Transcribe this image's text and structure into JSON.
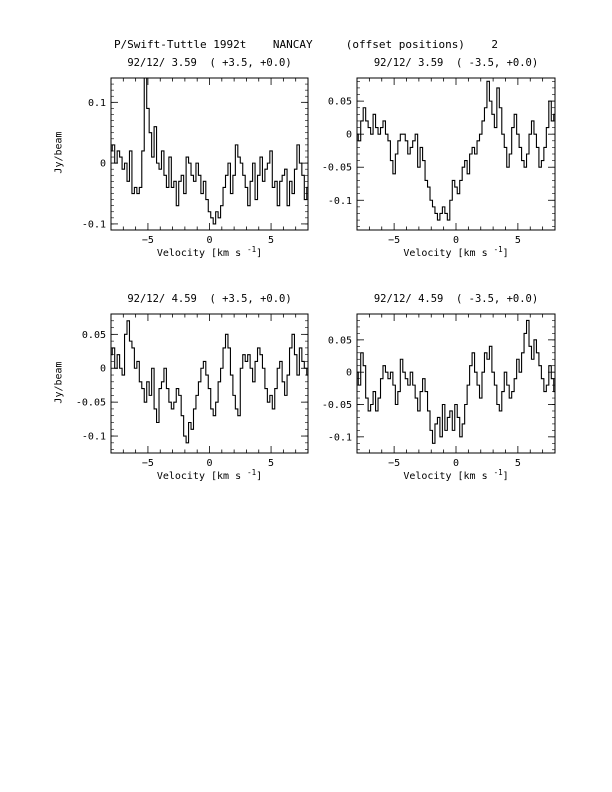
{
  "page": {
    "title": "P/Swift-Tuttle 1992t    NANCAY     (offset positions)    2"
  },
  "chart_data": [
    {
      "type": "line",
      "title": "92/12/ 3.59  ( +3.5, +0.0)",
      "xlabel": "Velocity [km s",
      "xlabel_sup": "-1",
      "xlabel_close": "]",
      "ylabel": "Jy/beam",
      "xlim": [
        -8,
        8
      ],
      "ylim": [
        -0.11,
        0.14
      ],
      "xticks": [
        -5,
        0,
        5
      ],
      "yticks": [
        -0.1,
        0,
        0.1
      ],
      "yticklabels": [
        "-0.1",
        "0",
        "0.1"
      ],
      "x_start": -8.0,
      "x_step": 0.2,
      "values": [
        0.02,
        0.03,
        0.0,
        0.02,
        0.01,
        -0.01,
        0.0,
        -0.03,
        0.02,
        -0.05,
        -0.04,
        -0.05,
        -0.04,
        0.02,
        0.14,
        0.09,
        0.05,
        0.01,
        0.06,
        0.0,
        -0.01,
        0.02,
        -0.02,
        -0.04,
        0.01,
        -0.04,
        -0.03,
        -0.07,
        -0.03,
        -0.02,
        -0.05,
        0.01,
        0.0,
        -0.02,
        -0.03,
        0.0,
        -0.02,
        -0.05,
        -0.03,
        -0.06,
        -0.08,
        -0.09,
        -0.1,
        -0.08,
        -0.09,
        -0.07,
        -0.04,
        -0.02,
        0.0,
        -0.05,
        -0.02,
        0.03,
        0.01,
        0.0,
        -0.02,
        -0.04,
        -0.07,
        -0.03,
        0.0,
        -0.06,
        -0.02,
        0.01,
        -0.03,
        -0.01,
        0.0,
        0.02,
        -0.04,
        -0.03,
        -0.07,
        -0.03,
        -0.02,
        -0.01,
        -0.07,
        -0.03,
        -0.05,
        -0.01,
        0.03,
        0.0,
        -0.02,
        -0.06,
        -0.04
      ]
    },
    {
      "type": "line",
      "title": "92/12/ 3.59  ( -3.5, +0.0)",
      "xlabel": "Velocity [km s",
      "xlabel_sup": "-1",
      "xlabel_close": "]",
      "ylabel": "",
      "xlim": [
        -8,
        8
      ],
      "ylim": [
        -0.145,
        0.085
      ],
      "xticks": [
        -5,
        0,
        5
      ],
      "yticks": [
        -0.1,
        -0.05,
        0,
        0.05
      ],
      "yticklabels": [
        "-0.1",
        "-0.05",
        "0",
        "0.05"
      ],
      "x_start": -8.0,
      "x_step": 0.2,
      "values": [
        0.0,
        -0.01,
        0.02,
        0.04,
        0.02,
        0.01,
        0.0,
        0.03,
        0.01,
        0.0,
        0.01,
        0.02,
        0.0,
        -0.01,
        -0.04,
        -0.06,
        -0.03,
        -0.01,
        0.0,
        0.0,
        -0.01,
        -0.03,
        -0.02,
        -0.01,
        0.0,
        -0.05,
        -0.02,
        -0.04,
        -0.07,
        -0.08,
        -0.1,
        -0.11,
        -0.12,
        -0.13,
        -0.12,
        -0.11,
        -0.12,
        -0.13,
        -0.1,
        -0.07,
        -0.08,
        -0.09,
        -0.07,
        -0.05,
        -0.04,
        -0.06,
        -0.03,
        -0.02,
        -0.03,
        -0.01,
        0.0,
        0.02,
        0.04,
        0.08,
        0.05,
        0.03,
        0.01,
        0.07,
        0.04,
        0.0,
        -0.02,
        -0.05,
        -0.03,
        0.01,
        0.03,
        0.0,
        -0.02,
        -0.04,
        -0.05,
        -0.03,
        0.0,
        0.02,
        0.0,
        -0.02,
        -0.05,
        -0.04,
        -0.02,
        0.01,
        0.05,
        0.02,
        0.03
      ]
    },
    {
      "type": "line",
      "title": "92/12/ 4.59  ( +3.5, +0.0)",
      "xlabel": "Velocity [km s",
      "xlabel_sup": "-1",
      "xlabel_close": "]",
      "ylabel": "Jy/beam",
      "xlim": [
        -8,
        8
      ],
      "ylim": [
        -0.125,
        0.08
      ],
      "xticks": [
        -5,
        0,
        5
      ],
      "yticks": [
        -0.1,
        -0.05,
        0,
        0.05
      ],
      "yticklabels": [
        "-0.1",
        "-0.05",
        "0",
        "0.05"
      ],
      "x_start": -8.0,
      "x_step": 0.2,
      "values": [
        0.02,
        0.03,
        0.0,
        0.02,
        0.0,
        -0.01,
        0.05,
        0.07,
        0.04,
        0.03,
        0.0,
        0.01,
        -0.02,
        -0.03,
        -0.05,
        -0.02,
        -0.04,
        0.0,
        -0.06,
        -0.08,
        -0.03,
        -0.02,
        0.0,
        -0.03,
        -0.05,
        -0.06,
        -0.05,
        -0.03,
        -0.04,
        -0.07,
        -0.1,
        -0.11,
        -0.08,
        -0.09,
        -0.06,
        -0.04,
        -0.02,
        0.0,
        0.01,
        -0.01,
        -0.03,
        -0.06,
        -0.07,
        -0.05,
        -0.02,
        0.0,
        0.03,
        0.05,
        0.03,
        -0.01,
        -0.04,
        -0.06,
        -0.07,
        0.0,
        0.02,
        0.01,
        0.02,
        0.0,
        -0.02,
        0.01,
        0.03,
        0.02,
        0.0,
        -0.03,
        -0.05,
        -0.04,
        -0.06,
        -0.03,
        0.0,
        0.01,
        -0.02,
        -0.04,
        -0.01,
        0.03,
        0.05,
        0.02,
        -0.01,
        0.03,
        0.01,
        0.0,
        -0.01
      ]
    },
    {
      "type": "line",
      "title": "92/12/ 4.59  ( -3.5, +0.0)",
      "xlabel": "Velocity [km s",
      "xlabel_sup": "-1",
      "xlabel_close": "]",
      "ylabel": "",
      "xlim": [
        -8,
        8
      ],
      "ylim": [
        -0.125,
        0.09
      ],
      "xticks": [
        -5,
        0,
        5
      ],
      "yticks": [
        -0.1,
        -0.05,
        0,
        0.05
      ],
      "yticklabels": [
        "-0.1",
        "-0.05",
        "0",
        "0.05"
      ],
      "x_start": -8.0,
      "x_step": 0.2,
      "values": [
        0.0,
        -0.02,
        0.03,
        0.01,
        -0.04,
        -0.06,
        -0.05,
        -0.03,
        -0.06,
        -0.04,
        -0.01,
        0.01,
        0.0,
        -0.01,
        0.0,
        -0.02,
        -0.05,
        -0.03,
        0.02,
        0.0,
        -0.01,
        -0.02,
        0.0,
        -0.02,
        -0.04,
        -0.06,
        -0.03,
        -0.01,
        -0.03,
        -0.06,
        -0.09,
        -0.11,
        -0.08,
        -0.07,
        -0.1,
        -0.05,
        -0.09,
        -0.07,
        -0.06,
        -0.09,
        -0.05,
        -0.07,
        -0.1,
        -0.08,
        -0.05,
        -0.02,
        0.01,
        0.03,
        0.0,
        -0.02,
        -0.04,
        0.0,
        0.03,
        0.02,
        0.04,
        0.0,
        -0.02,
        -0.05,
        -0.06,
        -0.03,
        0.0,
        -0.02,
        -0.04,
        -0.03,
        -0.01,
        0.02,
        0.0,
        0.03,
        0.06,
        0.08,
        0.04,
        0.02,
        0.05,
        0.03,
        0.01,
        -0.01,
        -0.03,
        -0.02,
        0.01,
        -0.01,
        -0.03
      ]
    }
  ]
}
